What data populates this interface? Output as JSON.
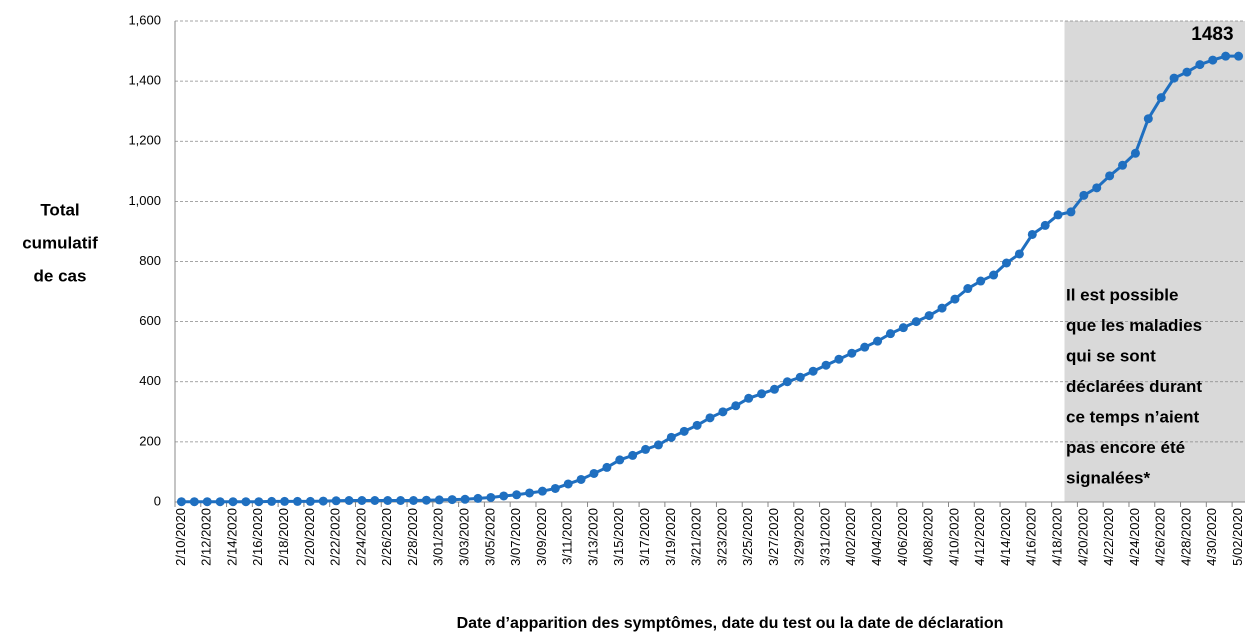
{
  "chart_data": {
    "type": "line",
    "ylabel": [
      "Total",
      "cumulatif",
      "de cas"
    ],
    "xlabel": "Date d’apparition des symptômes, date du test ou la date de déclaration",
    "annotation": [
      "Il est possible",
      "que les maladies",
      "qui se sont",
      "déclarées durant",
      "ce temps n’aient",
      "pas encore été",
      "signalées*"
    ],
    "categories": [
      "2/10/2020",
      null,
      "2/12/2020",
      null,
      "2/14/2020",
      null,
      "2/16/2020",
      null,
      "2/18/2020",
      null,
      "2/20/2020",
      null,
      "2/22/2020",
      null,
      "2/24/2020",
      null,
      "2/26/2020",
      null,
      "2/28/2020",
      null,
      "3/01/2020",
      null,
      "3/03/2020",
      null,
      "3/05/2020",
      null,
      "3/07/2020",
      null,
      "3/09/2020",
      null,
      "3/11/2020",
      null,
      "3/13/2020",
      null,
      "3/15/2020",
      null,
      "3/17/2020",
      null,
      "3/19/2020",
      null,
      "3/21/2020",
      null,
      "3/23/2020",
      null,
      "3/25/2020",
      null,
      "3/27/2020",
      null,
      "3/29/2020",
      null,
      "3/31/2020",
      null,
      "4/02/2020",
      null,
      "4/04/2020",
      null,
      "4/06/2020",
      null,
      "4/08/2020",
      null,
      "4/10/2020",
      null,
      "4/12/2020",
      null,
      "4/14/2020",
      null,
      "4/16/2020",
      null,
      "4/18/2020",
      null,
      "4/20/2020",
      null,
      "4/22/2020",
      null,
      "4/24/2020",
      null,
      "4/26/2020",
      null,
      "4/28/2020",
      null,
      "4/30/2020",
      null,
      "5/02/2020"
    ],
    "series": [
      {
        "color": "#1f6fc0",
        "values": [
          1,
          1,
          1,
          1,
          1,
          1,
          1,
          2,
          2,
          2,
          2,
          3,
          4,
          5,
          5,
          5,
          5,
          5,
          5,
          6,
          7,
          8,
          9,
          12,
          15,
          20,
          24,
          30,
          36,
          45,
          60,
          75,
          95,
          115,
          140,
          155,
          175,
          190,
          215,
          235,
          255,
          280,
          300,
          320,
          345,
          360,
          375,
          400,
          415,
          435,
          455,
          475,
          495,
          515,
          535,
          560,
          580,
          600,
          620,
          645,
          675,
          710,
          735,
          755,
          795,
          825,
          890,
          920,
          955,
          965,
          1020,
          1045,
          1085,
          1120,
          1160,
          1275,
          1345,
          1410,
          1430,
          1455,
          1470,
          1483,
          1483
        ]
      }
    ],
    "ylim": [
      0,
      1600
    ],
    "yticks": [
      0,
      200,
      400,
      600,
      800,
      {
        "value": 1000,
        "label": "1,000"
      },
      {
        "value": 1200,
        "label": "1,200"
      },
      {
        "value": 1400,
        "label": "1,400"
      },
      {
        "value": 1600,
        "label": "1,600"
      }
    ],
    "grid": true
  }
}
